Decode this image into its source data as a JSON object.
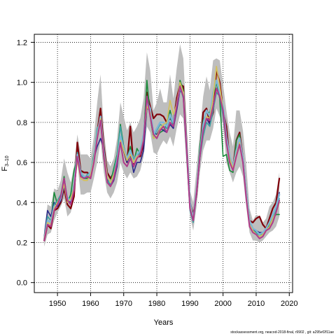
{
  "chart_data": {
    "type": "line",
    "title": "",
    "xlabel": "Years",
    "ylabel_main": "F",
    "ylabel_sub": "3–10",
    "xlim": [
      1943,
      2021
    ],
    "ylim": [
      -0.05,
      1.24
    ],
    "xticks": [
      1950,
      1960,
      1970,
      1980,
      1990,
      2000,
      2010,
      2020
    ],
    "yticks": [
      0.0,
      0.2,
      0.4,
      0.6,
      0.8,
      1.0,
      1.2
    ],
    "ytick_labels": [
      "0.0",
      "0.2",
      "0.4",
      "0.6",
      "0.8",
      "1.0",
      "1.2"
    ],
    "grid": true,
    "band_color": "#bebebe",
    "x": [
      1946,
      1947,
      1948,
      1949,
      1950,
      1951,
      1952,
      1953,
      1954,
      1955,
      1956,
      1957,
      1958,
      1959,
      1960,
      1961,
      1962,
      1963,
      1964,
      1965,
      1966,
      1967,
      1968,
      1969,
      1970,
      1971,
      1972,
      1973,
      1974,
      1975,
      1976,
      1977,
      1978,
      1979,
      1980,
      1981,
      1982,
      1983,
      1984,
      1985,
      1986,
      1987,
      1988,
      1989,
      1990,
      1991,
      1992,
      1993,
      1994,
      1995,
      1996,
      1997,
      1998,
      1999,
      2000,
      2001,
      2002,
      2003,
      2004,
      2005,
      2006,
      2007,
      2008,
      2009,
      2010,
      2011,
      2012,
      2013,
      2014,
      2015,
      2016,
      2017
    ],
    "band_lower": [
      0.18,
      0.24,
      0.25,
      0.31,
      0.35,
      0.38,
      0.42,
      0.33,
      0.35,
      0.42,
      0.6,
      0.44,
      0.44,
      0.45,
      0.45,
      0.52,
      0.6,
      0.71,
      0.55,
      0.45,
      0.42,
      0.45,
      0.5,
      0.6,
      0.55,
      0.52,
      0.55,
      0.52,
      0.53,
      0.56,
      0.63,
      0.78,
      0.75,
      0.65,
      0.64,
      0.68,
      0.71,
      0.69,
      0.73,
      0.68,
      0.77,
      0.84,
      0.82,
      0.58,
      0.33,
      0.26,
      0.38,
      0.55,
      0.66,
      0.71,
      0.71,
      0.77,
      0.87,
      0.83,
      0.79,
      0.6,
      0.55,
      0.5,
      0.55,
      0.58,
      0.53,
      0.38,
      0.25,
      0.21,
      0.21,
      0.2,
      0.21,
      0.23,
      0.25,
      0.26,
      0.28,
      0.33
    ],
    "band_upper": [
      0.26,
      0.39,
      0.38,
      0.47,
      0.46,
      0.51,
      0.62,
      0.55,
      0.5,
      0.58,
      0.74,
      0.64,
      0.64,
      0.64,
      0.62,
      0.73,
      0.9,
      1.04,
      0.76,
      0.61,
      0.58,
      0.62,
      0.72,
      0.9,
      0.83,
      0.76,
      0.8,
      0.75,
      0.78,
      0.82,
      0.92,
      1.15,
      1.06,
      0.86,
      0.9,
      0.97,
      0.9,
      0.9,
      1.04,
      0.92,
      1.07,
      1.19,
      1.12,
      0.8,
      0.46,
      0.4,
      0.57,
      0.75,
      0.93,
      1.03,
      0.96,
      1.11,
      1.12,
      1.11,
      0.99,
      0.86,
      0.75,
      0.68,
      0.86,
      0.86,
      0.76,
      0.59,
      0.37,
      0.31,
      0.34,
      0.33,
      0.3,
      0.32,
      0.38,
      0.4,
      0.44,
      0.55
    ],
    "series": [
      {
        "name": "",
        "color": "#80000a",
        "width": 2.2,
        "values": [
          0.21,
          0.29,
          0.27,
          0.36,
          0.37,
          0.4,
          0.47,
          0.39,
          0.37,
          0.43,
          0.7,
          0.56,
          0.55,
          0.55,
          0.53,
          0.61,
          0.75,
          0.87,
          0.68,
          0.55,
          0.52,
          0.55,
          0.6,
          0.72,
          0.66,
          0.6,
          0.78,
          0.58,
          0.63,
          0.63,
          0.69,
          0.95,
          0.88,
          0.82,
          0.84,
          0.84,
          0.83,
          0.8,
          0.82,
          0.8,
          0.92,
          0.99,
          0.98,
          0.7,
          0.4,
          0.34,
          0.44,
          0.65,
          0.85,
          0.87,
          0.8,
          0.85,
          1.06,
          1.0,
          0.86,
          0.78,
          0.61,
          0.57,
          0.71,
          0.75,
          0.62,
          0.45,
          0.31,
          0.3,
          0.32,
          0.33,
          0.29,
          0.27,
          0.32,
          0.37,
          0.4,
          0.52
        ]
      },
      {
        "name": "",
        "color": "#1a8a3a",
        "width": 1.6,
        "values": [
          0.22,
          0.31,
          0.3,
          0.45,
          0.39,
          0.43,
          0.53,
          0.4,
          0.44,
          0.56,
          0.62,
          0.56,
          0.52,
          0.52,
          0.55,
          0.64,
          0.72,
          0.82,
          0.62,
          0.52,
          0.5,
          0.57,
          0.64,
          0.79,
          0.68,
          0.62,
          0.68,
          0.6,
          0.67,
          0.64,
          0.72,
          1.01,
          0.83,
          0.72,
          0.73,
          0.75,
          0.76,
          0.79,
          0.86,
          0.79,
          0.87,
          1.01,
          0.96,
          0.66,
          0.38,
          0.32,
          0.46,
          0.68,
          0.81,
          0.85,
          0.85,
          0.93,
          1.0,
          0.92,
          0.63,
          0.64,
          0.56,
          0.55,
          0.71,
          0.74,
          0.6,
          0.43,
          0.3,
          0.27,
          0.25,
          0.24,
          0.24,
          0.26,
          0.29,
          0.32,
          0.34,
          0.34
        ]
      },
      {
        "name": "",
        "color": "#2a2a8a",
        "width": 1.6,
        "values": [
          0.23,
          0.36,
          0.33,
          0.4,
          0.38,
          0.41,
          0.48,
          0.41,
          0.4,
          0.46,
          0.63,
          0.53,
          0.53,
          0.53,
          0.52,
          0.62,
          0.68,
          0.72,
          0.67,
          0.52,
          0.48,
          0.51,
          0.58,
          0.71,
          0.66,
          0.6,
          0.64,
          0.55,
          0.6,
          0.6,
          0.66,
          0.87,
          0.86,
          0.75,
          0.74,
          0.77,
          0.76,
          0.75,
          0.79,
          0.77,
          0.86,
          0.96,
          0.94,
          0.68,
          0.38,
          0.33,
          0.45,
          0.62,
          0.76,
          0.82,
          0.79,
          0.88,
          0.97,
          0.94,
          0.85,
          0.73,
          0.62,
          0.58,
          0.64,
          0.69,
          0.62,
          0.44,
          0.31,
          0.26,
          0.26,
          0.25,
          0.25,
          0.27,
          0.3,
          0.34,
          0.38,
          0.45
        ]
      },
      {
        "name": "",
        "color": "#3aa0a0",
        "width": 1.6,
        "values": [
          0.22,
          0.33,
          0.31,
          0.39,
          0.41,
          0.44,
          0.52,
          0.42,
          0.42,
          0.49,
          0.65,
          0.54,
          0.52,
          0.54,
          0.55,
          0.63,
          0.77,
          0.8,
          0.63,
          0.51,
          0.49,
          0.55,
          0.63,
          0.78,
          0.67,
          0.61,
          0.66,
          0.62,
          0.63,
          0.65,
          0.71,
          0.93,
          0.84,
          0.73,
          0.76,
          0.79,
          0.78,
          0.77,
          0.83,
          0.78,
          0.9,
          0.98,
          0.92,
          0.64,
          0.36,
          0.3,
          0.44,
          0.62,
          0.73,
          0.8,
          0.78,
          0.86,
          0.95,
          0.93,
          0.83,
          0.7,
          0.6,
          0.56,
          0.66,
          0.71,
          0.61,
          0.43,
          0.29,
          0.26,
          0.25,
          0.23,
          0.24,
          0.26,
          0.28,
          0.32,
          0.36,
          0.42
        ]
      },
      {
        "name": "",
        "color": "#7fb6d6",
        "width": 2.4,
        "values": [
          0.22,
          0.31,
          0.3,
          0.38,
          0.39,
          0.42,
          0.5,
          0.42,
          0.41,
          0.48,
          0.64,
          0.55,
          0.53,
          0.53,
          0.55,
          0.62,
          0.74,
          0.83,
          0.65,
          0.53,
          0.5,
          0.53,
          0.61,
          0.73,
          0.67,
          0.62,
          0.66,
          0.6,
          0.64,
          0.66,
          0.74,
          0.9,
          0.87,
          0.74,
          0.77,
          0.8,
          0.8,
          0.78,
          0.84,
          0.8,
          0.89,
          0.97,
          0.95,
          0.68,
          0.4,
          0.32,
          0.46,
          0.64,
          0.79,
          0.86,
          0.83,
          0.95,
          1.01,
          0.95,
          0.88,
          0.73,
          0.63,
          0.58,
          0.66,
          0.72,
          0.62,
          0.45,
          0.31,
          0.27,
          0.26,
          0.24,
          0.25,
          0.27,
          0.3,
          0.34,
          0.38,
          0.44
        ]
      },
      {
        "name": "",
        "color": "#d4c05a",
        "width": 1.6,
        "values": [
          0.22,
          0.3,
          0.29,
          0.37,
          0.4,
          0.43,
          0.49,
          0.4,
          0.42,
          0.47,
          0.61,
          0.52,
          0.51,
          0.51,
          0.54,
          0.61,
          0.73,
          0.82,
          0.64,
          0.53,
          0.5,
          0.54,
          0.6,
          0.71,
          0.66,
          0.61,
          0.64,
          0.6,
          0.63,
          0.64,
          0.72,
          0.88,
          0.85,
          0.72,
          0.73,
          0.77,
          0.79,
          0.8,
          0.91,
          0.84,
          0.89,
          1.0,
          0.95,
          0.66,
          0.38,
          0.31,
          0.45,
          0.63,
          0.76,
          0.83,
          0.82,
          0.92,
          1.08,
          0.98,
          0.86,
          0.7,
          0.62,
          0.57,
          0.64,
          0.7,
          0.6,
          0.43,
          0.29,
          0.26,
          0.24,
          0.23,
          0.24,
          0.26,
          0.28,
          0.32,
          0.35,
          0.4
        ]
      },
      {
        "name": "",
        "color": "#b03a8a",
        "width": 2.0,
        "values": [
          0.21,
          0.29,
          0.28,
          0.36,
          0.39,
          0.43,
          0.52,
          0.41,
          0.39,
          0.46,
          0.63,
          0.53,
          0.52,
          0.53,
          0.52,
          0.6,
          0.72,
          0.81,
          0.63,
          0.5,
          0.48,
          0.52,
          0.6,
          0.7,
          0.6,
          0.58,
          0.62,
          0.58,
          0.62,
          0.64,
          0.71,
          0.93,
          0.83,
          0.74,
          0.72,
          0.76,
          0.78,
          0.75,
          0.8,
          0.78,
          0.88,
          0.98,
          0.93,
          0.66,
          0.37,
          0.31,
          0.45,
          0.63,
          0.76,
          0.82,
          0.81,
          0.88,
          0.97,
          0.93,
          0.86,
          0.7,
          0.6,
          0.56,
          0.63,
          0.69,
          0.6,
          0.42,
          0.28,
          0.25,
          0.24,
          0.22,
          0.23,
          0.26,
          0.27,
          0.3,
          0.35,
          0.41
        ]
      }
    ]
  },
  "footer_text": "stockassessment.org, neacod-2018-final, r9902 , git: a295ef2f11ae"
}
